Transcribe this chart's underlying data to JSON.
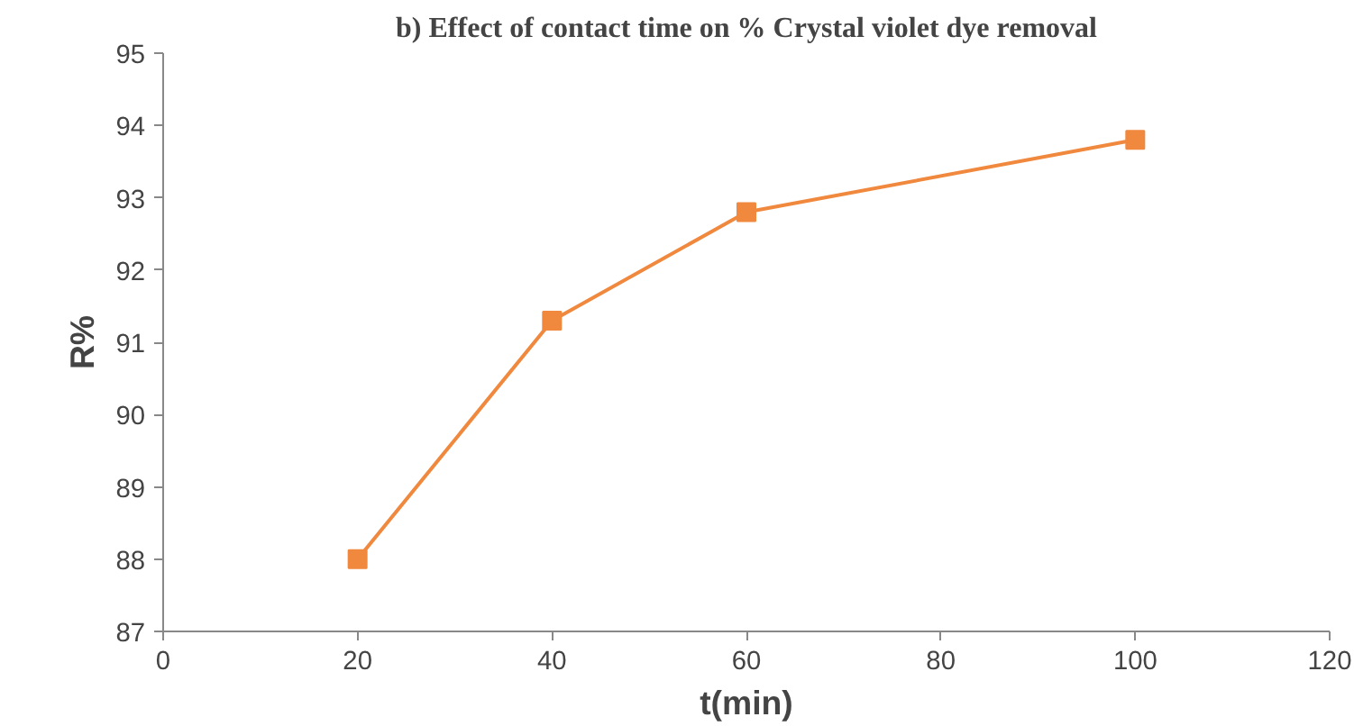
{
  "chart_data": {
    "type": "line",
    "title": "b) Effect of contact time on % Crystal violet dye removal",
    "xlabel": "t(min)",
    "ylabel": "R%",
    "x": [
      20,
      40,
      60,
      100
    ],
    "series": [
      {
        "color": "#f0883e",
        "values": [
          88.0,
          91.3,
          92.8,
          93.8
        ]
      }
    ],
    "xlim": [
      0,
      120
    ],
    "xticks": [
      0,
      20,
      40,
      60,
      80,
      100,
      120
    ],
    "ylim": [
      87,
      95
    ],
    "yticks": [
      87,
      88,
      89,
      90,
      91,
      92,
      93,
      94,
      95
    ],
    "grid": false,
    "marker": "square",
    "line_style": "solid"
  }
}
